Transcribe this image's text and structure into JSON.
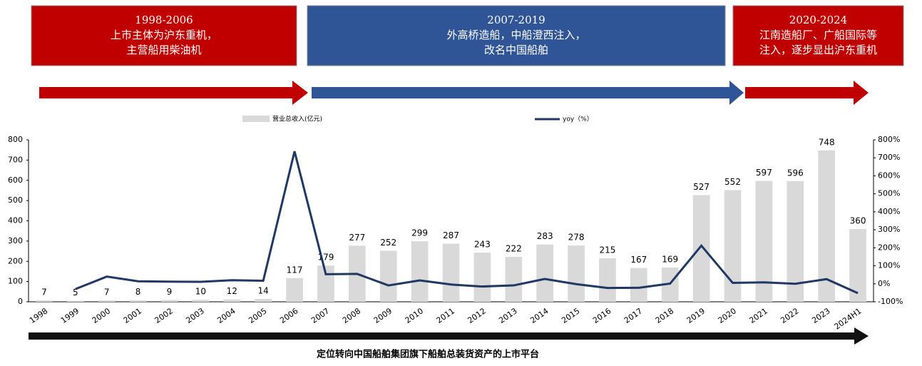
{
  "header": {
    "periods": [
      {
        "title": "1998-2006",
        "lines": [
          "上市主体为沪东重机，",
          "主营船用柴油机"
        ],
        "color": "#c00000"
      },
      {
        "title": "2007-2019",
        "lines": [
          "外高桥造船，中船澄西注入，",
          "改名中国船舶"
        ],
        "color": "#2f5597"
      },
      {
        "title": "2020-2024",
        "lines": [
          "江南造船厂、广船国际等",
          "注入，逐步显出沪东重机"
        ],
        "color": "#c00000"
      }
    ]
  },
  "footer": {
    "text": "定位转向中国船舶集团旗下船舶总装货资产的上市平台"
  },
  "chart_data": {
    "type": "combo",
    "categories": [
      "1998",
      "1999",
      "2000",
      "2001",
      "2002",
      "2003",
      "2004",
      "2005",
      "2006",
      "2007",
      "2008",
      "2009",
      "2010",
      "2011",
      "2012",
      "2013",
      "2014",
      "2015",
      "2016",
      "2017",
      "2018",
      "2019",
      "2020",
      "2021",
      "2022",
      "2023",
      "2024H1"
    ],
    "series": [
      {
        "name": "营业总收入(亿元)",
        "type": "bar",
        "color": "#d9d9d9",
        "values": [
          7,
          5,
          7,
          8,
          9,
          10,
          12,
          14,
          117,
          179,
          277,
          252,
          299,
          287,
          243,
          222,
          283,
          278,
          215,
          167,
          169,
          527,
          552,
          597,
          596,
          748,
          360
        ]
      },
      {
        "name": "yoy（%）",
        "type": "line",
        "axis": "y2",
        "color": "#1f3864",
        "values": [
          null,
          -29,
          40,
          14,
          12,
          11,
          20,
          17,
          736,
          53,
          55,
          -9,
          19,
          -4,
          -15,
          -9,
          27,
          -2,
          -23,
          -22,
          1,
          212,
          5,
          8,
          0,
          26,
          -52
        ]
      }
    ],
    "ylim": [
      0,
      800
    ],
    "yticks": [
      0,
      100,
      200,
      300,
      400,
      500,
      600,
      700,
      800
    ],
    "y2lim": [
      -100,
      800
    ],
    "y2ticks": [
      {
        "value": -100,
        "label": "-100%"
      },
      {
        "value": 0,
        "label": "0%"
      },
      {
        "value": 100,
        "label": "100%"
      },
      {
        "value": 200,
        "label": "200%"
      },
      {
        "value": 300,
        "label": "300%"
      },
      {
        "value": 400,
        "label": "400%"
      },
      {
        "value": 500,
        "label": "500%"
      },
      {
        "value": 600,
        "label": "600%"
      },
      {
        "value": 700,
        "label": "700%"
      },
      {
        "value": 800,
        "label": "800%"
      }
    ]
  }
}
